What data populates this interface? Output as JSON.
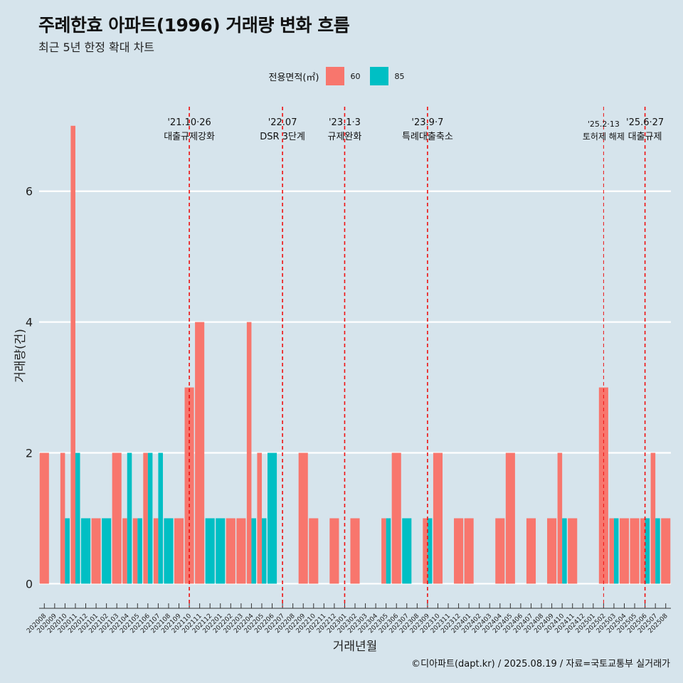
{
  "header": {
    "title": "주례한효 아파트(1996) 거래량 변화 흐름",
    "subtitle": "최근 5년 한정 확대 차트"
  },
  "legend": {
    "title": "전용면적(㎡)",
    "items": [
      {
        "label": "60",
        "color": "#f8766d"
      },
      {
        "label": "85",
        "color": "#00bfc4"
      }
    ]
  },
  "caption": "©디아파트(dapt.kr) / 2025.08.19 / 자료=국토교통부 실거래가",
  "chart_data": {
    "type": "bar",
    "stacking": "dodge",
    "xlabel": "거래년월",
    "ylabel": "거래량(건)",
    "ylim": [
      -0.3,
      7.4
    ],
    "yticks": [
      0,
      2,
      4,
      6
    ],
    "grid": "horizontal-major",
    "legend_position": "top",
    "categories": [
      "202008",
      "202009",
      "202010",
      "202011",
      "202012",
      "202101",
      "202102",
      "202103",
      "202104",
      "202105",
      "202106",
      "202107",
      "202108",
      "202109",
      "202110",
      "202111",
      "202112",
      "202201",
      "202202",
      "202203",
      "202204",
      "202205",
      "202206",
      "202207",
      "202208",
      "202209",
      "202210",
      "202211",
      "202212",
      "202301",
      "202302",
      "202303",
      "202304",
      "202305",
      "202306",
      "202307",
      "202308",
      "202309",
      "202310",
      "202311",
      "202312",
      "202401",
      "202402",
      "202403",
      "202404",
      "202405",
      "202406",
      "202407",
      "202408",
      "202409",
      "202410",
      "202411",
      "202412",
      "202501",
      "202502",
      "202503",
      "202504",
      "202505",
      "202506",
      "202507",
      "202508"
    ],
    "series": [
      {
        "name": "60",
        "color": "#f8766d",
        "values": [
          2,
          0,
          2,
          7,
          0,
          1,
          0,
          2,
          1,
          1,
          2,
          1,
          0,
          1,
          3,
          4,
          0,
          0,
          1,
          1,
          4,
          2,
          0,
          0,
          0,
          2,
          1,
          0,
          1,
          0,
          1,
          0,
          0,
          1,
          2,
          0,
          0,
          1,
          2,
          0,
          1,
          1,
          0,
          0,
          1,
          2,
          0,
          1,
          0,
          1,
          2,
          1,
          0,
          0,
          3,
          1,
          1,
          1,
          1,
          2,
          1
        ]
      },
      {
        "name": "85",
        "color": "#00bfc4",
        "values": [
          0,
          0,
          1,
          2,
          1,
          0,
          1,
          0,
          2,
          1,
          2,
          2,
          1,
          0,
          0,
          0,
          1,
          1,
          0,
          0,
          1,
          1,
          2,
          0,
          0,
          0,
          0,
          0,
          0,
          0,
          0,
          0,
          0,
          1,
          0,
          1,
          0,
          1,
          0,
          0,
          0,
          0,
          0,
          0,
          0,
          0,
          0,
          0,
          0,
          0,
          1,
          0,
          0,
          0,
          0,
          1,
          0,
          0,
          1,
          1,
          0
        ]
      }
    ],
    "events": [
      {
        "category": "202110",
        "date": "'21.10·26",
        "label": "대출규제강화"
      },
      {
        "category": "202207",
        "date": "'22.07",
        "label": "DSR 3단계"
      },
      {
        "category": "202301",
        "date": "'23.1·3",
        "label": "규제완화"
      },
      {
        "category": "202309",
        "date": "'23.9·7",
        "label": "특례대출축소"
      },
      {
        "category": "202502",
        "date": "'25.2·13",
        "label": "토허제 해제"
      },
      {
        "category": "202506",
        "date": "'25.6·27",
        "label": "대출규제"
      }
    ]
  }
}
